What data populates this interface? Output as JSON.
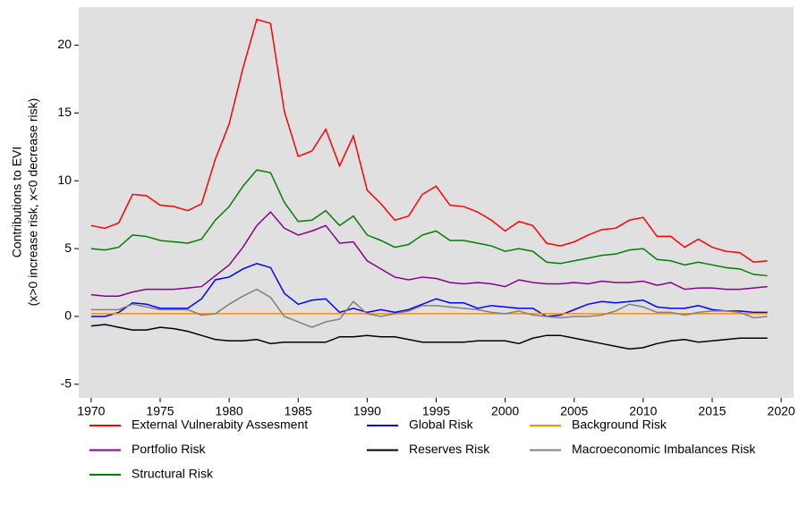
{
  "chart_data": {
    "type": "line",
    "ylabel": [
      "Contributions to EVI",
      "(x>0 increase risk, x<0 decrease risk)"
    ],
    "x": [
      1970,
      1971,
      1972,
      1973,
      1974,
      1975,
      1976,
      1977,
      1978,
      1979,
      1980,
      1981,
      1982,
      1983,
      1984,
      1985,
      1986,
      1987,
      1988,
      1989,
      1990,
      1991,
      1992,
      1993,
      1994,
      1995,
      1996,
      1997,
      1998,
      1999,
      2000,
      2001,
      2002,
      2003,
      2004,
      2005,
      2006,
      2007,
      2008,
      2009,
      2010,
      2011,
      2012,
      2013,
      2014,
      2015,
      2016,
      2017,
      2018,
      2019
    ],
    "xlim": [
      1969.1,
      2020.9
    ],
    "xticks": [
      1970,
      1975,
      1980,
      1985,
      1990,
      1995,
      2000,
      2005,
      2010,
      2015,
      2020
    ],
    "ylim": [
      -6,
      22.8
    ],
    "yticks": [
      -5,
      0,
      5,
      10,
      15,
      20
    ],
    "grid": false,
    "legend_position": "bottom",
    "series": [
      {
        "name": "External Vulnerabity Assesment",
        "color": "#ff0000",
        "values": [
          6.7,
          6.5,
          6.9,
          9.0,
          8.9,
          8.2,
          8.1,
          7.8,
          8.3,
          11.6,
          14.2,
          18.3,
          21.9,
          21.6,
          15.1,
          11.8,
          12.2,
          13.8,
          11.1,
          13.3,
          9.3,
          8.3,
          7.1,
          7.4,
          9.0,
          9.6,
          8.2,
          8.1,
          7.7,
          7.1,
          6.3,
          7.0,
          6.7,
          5.4,
          5.2,
          5.5,
          6.0,
          6.4,
          6.5,
          7.1,
          7.3,
          5.9,
          5.9,
          5.1,
          5.7,
          5.1,
          4.8,
          4.7,
          4.0,
          4.1
        ]
      },
      {
        "name": "Global Risk",
        "color": "#0000ff",
        "values": [
          0.0,
          0.0,
          0.3,
          1.0,
          0.9,
          0.6,
          0.6,
          0.6,
          1.3,
          2.7,
          2.9,
          3.5,
          3.9,
          3.6,
          1.7,
          0.9,
          1.2,
          1.3,
          0.3,
          0.6,
          0.3,
          0.5,
          0.3,
          0.5,
          0.9,
          1.3,
          1.0,
          1.0,
          0.6,
          0.8,
          0.7,
          0.6,
          0.6,
          0.0,
          0.1,
          0.5,
          0.9,
          1.1,
          1.0,
          1.1,
          1.2,
          0.7,
          0.6,
          0.6,
          0.8,
          0.5,
          0.4,
          0.4,
          0.3,
          0.3
        ]
      },
      {
        "name": "Background Risk",
        "color": "#ff8c00",
        "values": [
          0.2,
          0.2,
          0.2,
          0.2,
          0.2,
          0.2,
          0.2,
          0.2,
          0.2,
          0.2,
          0.2,
          0.2,
          0.2,
          0.2,
          0.2,
          0.2,
          0.2,
          0.2,
          0.2,
          0.2,
          0.2,
          0.2,
          0.2,
          0.2,
          0.2,
          0.2,
          0.2,
          0.2,
          0.2,
          0.2,
          0.2,
          0.2,
          0.2,
          0.2,
          0.2,
          0.2,
          0.2,
          0.2,
          0.2,
          0.2,
          0.2,
          0.2,
          0.2,
          0.2,
          0.2,
          0.2,
          0.2,
          0.2,
          0.2,
          0.2
        ]
      },
      {
        "name": "Portfolio Risk",
        "color": "#8b008b",
        "values": [
          1.6,
          1.5,
          1.5,
          1.8,
          2.0,
          2.0,
          2.0,
          2.1,
          2.2,
          3.0,
          3.8,
          5.1,
          6.7,
          7.7,
          6.5,
          6.0,
          6.3,
          6.7,
          5.4,
          5.5,
          4.1,
          3.5,
          2.9,
          2.7,
          2.9,
          2.8,
          2.5,
          2.4,
          2.5,
          2.4,
          2.2,
          2.7,
          2.5,
          2.4,
          2.4,
          2.5,
          2.4,
          2.6,
          2.5,
          2.5,
          2.6,
          2.3,
          2.5,
          2.0,
          2.1,
          2.1,
          2.0,
          2.0,
          2.1,
          2.2
        ]
      },
      {
        "name": "Reserves Risk",
        "color": "#000000",
        "values": [
          -0.7,
          -0.6,
          -0.8,
          -1.0,
          -1.0,
          -0.8,
          -0.9,
          -1.1,
          -1.4,
          -1.7,
          -1.8,
          -1.8,
          -1.7,
          -2.0,
          -1.9,
          -1.9,
          -1.9,
          -1.9,
          -1.5,
          -1.5,
          -1.4,
          -1.5,
          -1.5,
          -1.7,
          -1.9,
          -1.9,
          -1.9,
          -1.9,
          -1.8,
          -1.8,
          -1.8,
          -2.0,
          -1.6,
          -1.4,
          -1.4,
          -1.6,
          -1.8,
          -2.0,
          -2.2,
          -2.4,
          -2.3,
          -2.0,
          -1.8,
          -1.7,
          -1.9,
          -1.8,
          -1.7,
          -1.6,
          -1.6,
          -1.6
        ]
      },
      {
        "name": "Macroeconomic Imbalances Risk",
        "color": "#808080",
        "values": [
          0.5,
          0.5,
          0.5,
          0.9,
          0.7,
          0.5,
          0.5,
          0.5,
          0.1,
          0.2,
          0.9,
          1.5,
          2.0,
          1.4,
          0.0,
          -0.4,
          -0.8,
          -0.4,
          -0.2,
          1.1,
          0.2,
          0.0,
          0.2,
          0.4,
          0.8,
          0.8,
          0.7,
          0.6,
          0.5,
          0.3,
          0.2,
          0.4,
          0.1,
          0.0,
          -0.1,
          0.0,
          0.0,
          0.1,
          0.4,
          0.9,
          0.7,
          0.3,
          0.3,
          0.1,
          0.3,
          0.4,
          0.4,
          0.3,
          -0.1,
          0.0
        ]
      },
      {
        "name": "Structural Risk",
        "color": "#008000",
        "values": [
          5.0,
          4.9,
          5.1,
          6.0,
          5.9,
          5.6,
          5.5,
          5.4,
          5.7,
          7.1,
          8.1,
          9.6,
          10.8,
          10.6,
          8.4,
          7.0,
          7.1,
          7.8,
          6.7,
          7.4,
          6.0,
          5.6,
          5.1,
          5.3,
          6.0,
          6.3,
          5.6,
          5.6,
          5.4,
          5.2,
          4.8,
          5.0,
          4.8,
          4.0,
          3.9,
          4.1,
          4.3,
          4.5,
          4.6,
          4.9,
          5.0,
          4.2,
          4.1,
          3.8,
          4.0,
          3.8,
          3.6,
          3.5,
          3.1,
          3.0
        ]
      }
    ]
  }
}
